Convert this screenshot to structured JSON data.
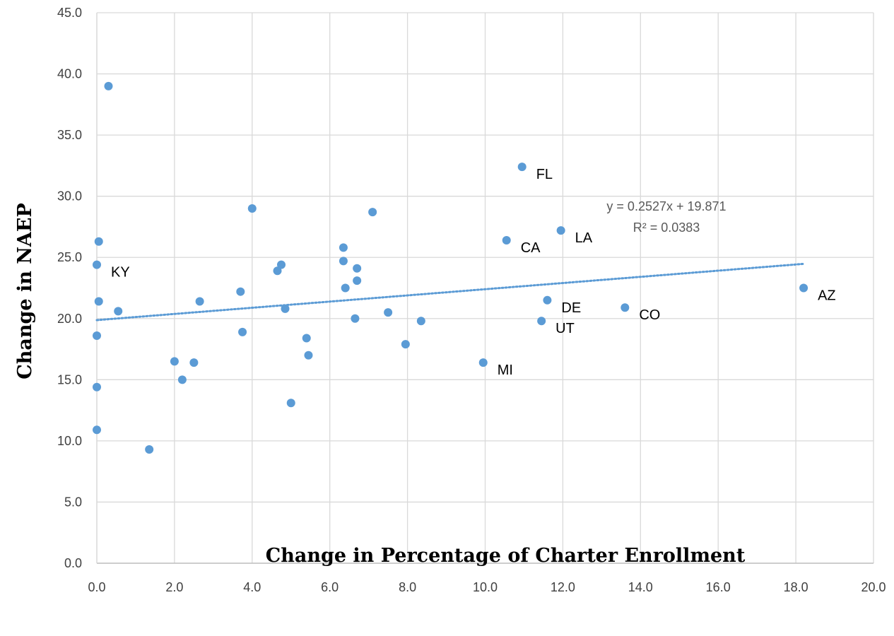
{
  "chart_data": {
    "type": "scatter",
    "title": "",
    "xlabel": "Change in Percentage of Charter Enrollment",
    "ylabel": "Change in NAEP",
    "xlim": [
      0,
      20
    ],
    "ylim": [
      0,
      45
    ],
    "x_ticks": [
      "0.0",
      "2.0",
      "4.0",
      "6.0",
      "8.0",
      "10.0",
      "12.0",
      "14.0",
      "16.0",
      "18.0",
      "20.0"
    ],
    "y_ticks": [
      "0.0",
      "5.0",
      "10.0",
      "15.0",
      "20.0",
      "25.0",
      "30.0",
      "35.0",
      "40.0",
      "45.0"
    ],
    "grid": true,
    "legend": "none",
    "marker_color": "#5B9BD5",
    "series": [
      {
        "points": [
          {
            "x": 0.3,
            "y": 39.0
          },
          {
            "x": 0.05,
            "y": 26.3
          },
          {
            "x": 0.0,
            "y": 24.4,
            "label": "KY"
          },
          {
            "x": 0.05,
            "y": 21.4
          },
          {
            "x": 0.55,
            "y": 20.6
          },
          {
            "x": 0.0,
            "y": 18.6
          },
          {
            "x": 0.0,
            "y": 14.4
          },
          {
            "x": 0.0,
            "y": 10.9
          },
          {
            "x": 1.35,
            "y": 9.3
          },
          {
            "x": 2.0,
            "y": 16.5
          },
          {
            "x": 2.2,
            "y": 15.0
          },
          {
            "x": 2.5,
            "y": 16.4
          },
          {
            "x": 2.65,
            "y": 21.4
          },
          {
            "x": 3.7,
            "y": 22.2
          },
          {
            "x": 3.75,
            "y": 18.9
          },
          {
            "x": 4.0,
            "y": 29.0
          },
          {
            "x": 4.65,
            "y": 23.9
          },
          {
            "x": 4.75,
            "y": 24.4
          },
          {
            "x": 4.85,
            "y": 20.8
          },
          {
            "x": 5.0,
            "y": 13.1
          },
          {
            "x": 5.4,
            "y": 18.4
          },
          {
            "x": 5.45,
            "y": 17.0
          },
          {
            "x": 6.35,
            "y": 25.8
          },
          {
            "x": 6.35,
            "y": 24.7
          },
          {
            "x": 6.4,
            "y": 22.5
          },
          {
            "x": 6.65,
            "y": 20.0
          },
          {
            "x": 6.7,
            "y": 24.1
          },
          {
            "x": 6.7,
            "y": 23.1
          },
          {
            "x": 7.1,
            "y": 28.7
          },
          {
            "x": 7.5,
            "y": 20.5
          },
          {
            "x": 7.95,
            "y": 17.9
          },
          {
            "x": 8.35,
            "y": 19.8
          },
          {
            "x": 9.95,
            "y": 16.4,
            "label": "MI"
          },
          {
            "x": 10.55,
            "y": 26.4,
            "label": "CA"
          },
          {
            "x": 10.95,
            "y": 32.4,
            "label": "FL"
          },
          {
            "x": 11.45,
            "y": 19.8,
            "label": "UT"
          },
          {
            "x": 11.6,
            "y": 21.5,
            "label": "DE"
          },
          {
            "x": 11.95,
            "y": 27.2,
            "label": "LA"
          },
          {
            "x": 13.6,
            "y": 20.9,
            "label": "CO"
          },
          {
            "x": 18.2,
            "y": 22.5,
            "label": "AZ"
          }
        ]
      }
    ],
    "trendline": {
      "type": "linear",
      "slope": 0.2527,
      "intercept": 19.871,
      "x_range": [
        0,
        18.2
      ],
      "equation": "y = 0.2527x + 19.871",
      "r_squared": "R² = 0.0383",
      "color": "#5B9BD5"
    }
  }
}
